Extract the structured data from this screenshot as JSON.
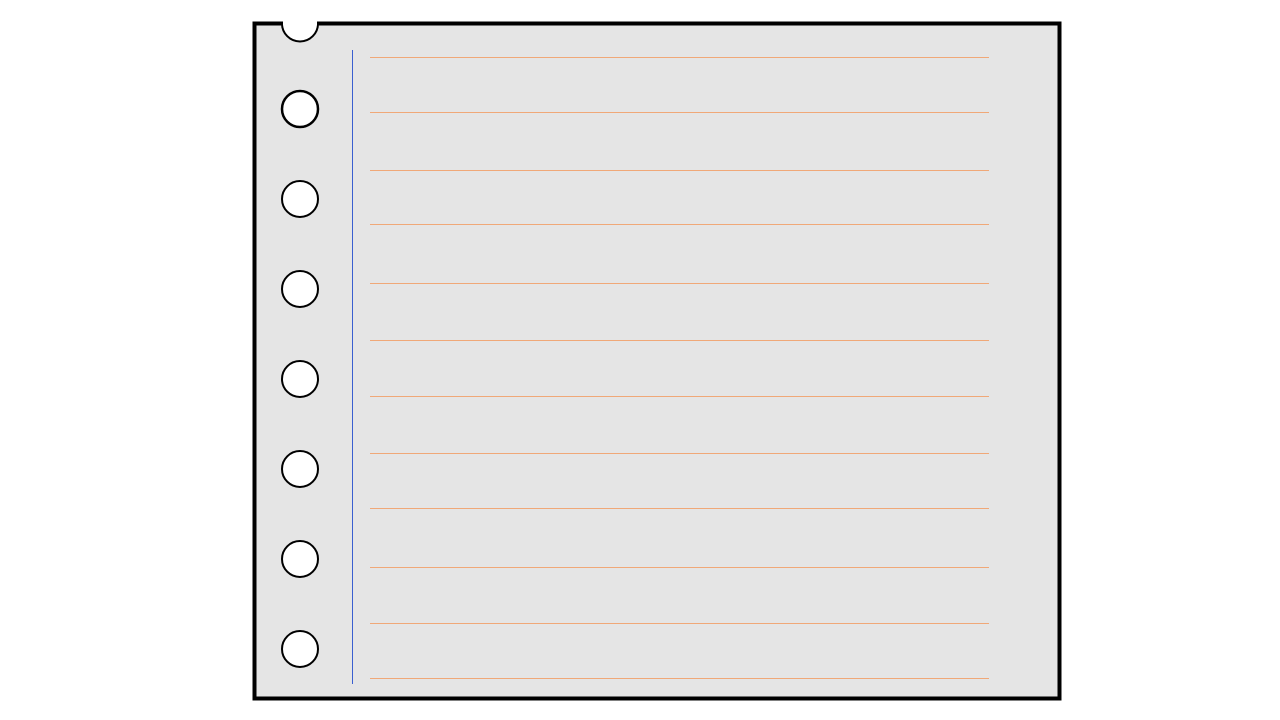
{
  "colors": {
    "page_background": "#ffffff",
    "paper": "#e5e5e5",
    "paper_border": "#000000",
    "punch_hole": "#ffffff",
    "punch_hole_outline": "#000000",
    "margin_line": "#3a5fd0",
    "ruled_line": "#f0a878"
  },
  "notebook": {
    "punch_holes": 8,
    "ruled_lines": 12,
    "notch_at_top": true
  }
}
